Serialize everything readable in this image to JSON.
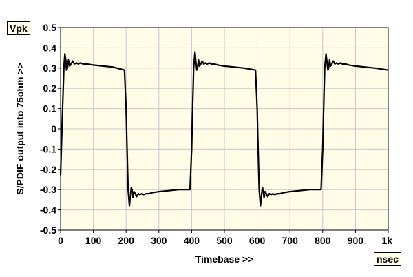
{
  "chart_data": {
    "type": "line",
    "ylabel": "S/PDIF output into 75ohm >>",
    "xlabel": "Timebase >>",
    "y_unit": "Vpk",
    "x_unit": "nsec",
    "xlim": [
      0,
      1000
    ],
    "ylim": [
      -0.5,
      0.5
    ],
    "grid": true,
    "colors": {
      "plot_background": "#fffde7",
      "grid": "#c8c8c8",
      "trace": "#000000"
    },
    "x_ticks": [
      {
        "value": 0,
        "label": "0"
      },
      {
        "value": 100,
        "label": "100"
      },
      {
        "value": 200,
        "label": "200"
      },
      {
        "value": 300,
        "label": "300"
      },
      {
        "value": 400,
        "label": "400"
      },
      {
        "value": 500,
        "label": "500"
      },
      {
        "value": 600,
        "label": "600"
      },
      {
        "value": 700,
        "label": "700"
      },
      {
        "value": 800,
        "label": "800"
      },
      {
        "value": 900,
        "label": "900"
      },
      {
        "value": 1000,
        "label": "1k"
      }
    ],
    "y_ticks": [
      {
        "value": 0.5,
        "label": "0.5"
      },
      {
        "value": 0.4,
        "label": "0.4"
      },
      {
        "value": 0.3,
        "label": "0.3"
      },
      {
        "value": 0.2,
        "label": "0.2"
      },
      {
        "value": 0.1,
        "label": "0.1"
      },
      {
        "value": 0,
        "label": "0"
      },
      {
        "value": -0.1,
        "label": "-0.1"
      },
      {
        "value": -0.2,
        "label": "-0.2"
      },
      {
        "value": -0.3,
        "label": "-0.3"
      },
      {
        "value": -0.4,
        "label": "-0.4"
      },
      {
        "value": -0.5,
        "label": "-0.5"
      }
    ],
    "series": [
      {
        "x": [
          0,
          5,
          10,
          13,
          16,
          18,
          21,
          24,
          28,
          32,
          37,
          42,
          48,
          54,
          60,
          70,
          80,
          100,
          130,
          160,
          195,
          200,
          202,
          206,
          210,
          213,
          216,
          218,
          221,
          224,
          228,
          232,
          237,
          242,
          248,
          254,
          260,
          270,
          280,
          300,
          330,
          360,
          395,
          400,
          402,
          406,
          410,
          413,
          416,
          418,
          421,
          424,
          428,
          432,
          437,
          442,
          448,
          454,
          460,
          470,
          480,
          500,
          530,
          560,
          595,
          600,
          602,
          606,
          610,
          613,
          616,
          618,
          621,
          624,
          628,
          632,
          637,
          642,
          648,
          654,
          660,
          670,
          680,
          700,
          730,
          760,
          795,
          800,
          802,
          806,
          810,
          813,
          816,
          818,
          821,
          824,
          828,
          832,
          837,
          842,
          848,
          854,
          860,
          870,
          880,
          900,
          930,
          960,
          1000
        ],
        "y": [
          -0.23,
          0.05,
          0.3,
          0.37,
          0.34,
          0.29,
          0.3,
          0.34,
          0.31,
          0.32,
          0.335,
          0.32,
          0.325,
          0.32,
          0.325,
          0.32,
          0.32,
          0.315,
          0.31,
          0.305,
          0.29,
          0.1,
          -0.05,
          -0.3,
          -0.38,
          -0.33,
          -0.29,
          -0.3,
          -0.34,
          -0.31,
          -0.32,
          -0.335,
          -0.32,
          -0.325,
          -0.32,
          -0.325,
          -0.32,
          -0.32,
          -0.315,
          -0.31,
          -0.305,
          -0.3,
          -0.3,
          -0.1,
          0.05,
          0.3,
          0.38,
          0.33,
          0.29,
          0.3,
          0.34,
          0.31,
          0.32,
          0.335,
          0.32,
          0.325,
          0.32,
          0.325,
          0.32,
          0.32,
          0.315,
          0.31,
          0.305,
          0.3,
          0.29,
          0.1,
          -0.05,
          -0.3,
          -0.38,
          -0.33,
          -0.29,
          -0.3,
          -0.34,
          -0.31,
          -0.32,
          -0.335,
          -0.32,
          -0.325,
          -0.32,
          -0.325,
          -0.32,
          -0.32,
          -0.315,
          -0.31,
          -0.305,
          -0.3,
          -0.3,
          -0.1,
          0.05,
          0.3,
          0.37,
          0.33,
          0.29,
          0.3,
          0.34,
          0.31,
          0.32,
          0.335,
          0.32,
          0.325,
          0.32,
          0.325,
          0.32,
          0.32,
          0.315,
          0.31,
          0.305,
          0.3,
          0.29
        ]
      }
    ]
  }
}
